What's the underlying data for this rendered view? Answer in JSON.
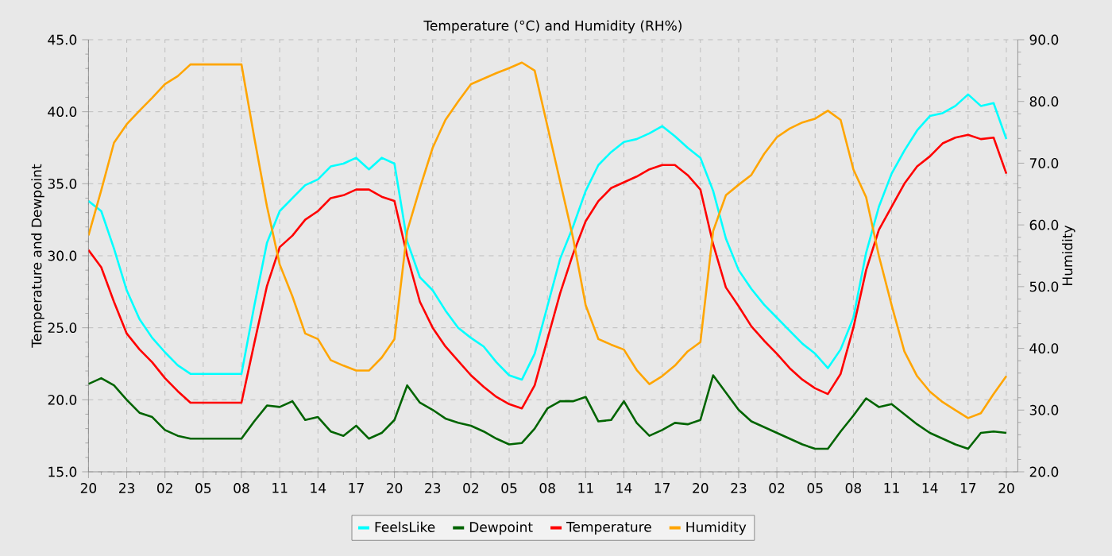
{
  "chart_data": {
    "type": "line",
    "title": "Temperature (°C) and Humidity (RH%)",
    "ylabel": "Temperature and Dewpoint",
    "y2label": "Humidity",
    "categories": [
      "20",
      null,
      null,
      "23",
      null,
      null,
      "02",
      null,
      null,
      "05",
      null,
      null,
      "08",
      null,
      null,
      "11",
      null,
      null,
      "14",
      null,
      null,
      "17",
      null,
      null,
      "20",
      null,
      null,
      "23",
      null,
      null,
      "02",
      null,
      null,
      "05",
      null,
      null,
      "08",
      null,
      null,
      "11",
      null,
      null,
      "14",
      null,
      null,
      "17",
      null,
      null,
      "20",
      null,
      null,
      "23",
      null,
      null,
      "02",
      null,
      null,
      "05",
      null,
      null,
      "08",
      null,
      null,
      "11",
      null,
      null,
      "14",
      null,
      null,
      "17",
      null,
      null,
      "20"
    ],
    "series": [
      {
        "name": "FeelsLike",
        "color": "#00ffff",
        "values": [
          33.8,
          33.1,
          30.5,
          27.6,
          25.6,
          24.3,
          23.3,
          22.4,
          21.8,
          21.8,
          21.8,
          21.8,
          21.8,
          26.5,
          30.9,
          33.1,
          34,
          34.9,
          35.3,
          36.2,
          36.4,
          36.8,
          36,
          36.8,
          36.4,
          31,
          28.5,
          27.6,
          26.2,
          25,
          24.3,
          23.7,
          22.6,
          21.7,
          21.4,
          23.2,
          26.5,
          29.8,
          32,
          34.5,
          36.3,
          37.2,
          37.9,
          38.1,
          38.5,
          39,
          38.3,
          37.5,
          36.8,
          34.5,
          31.2,
          29,
          27.7,
          26.6,
          25.7,
          24.8,
          23.9,
          23.2,
          22.2,
          23.5,
          25.7,
          30.2,
          33.4,
          35.7,
          37.3,
          38.7,
          39.7,
          39.9,
          40.4,
          41.2,
          40.4,
          40.6,
          38.1
        ]
      },
      {
        "name": "Dewpoint",
        "color": "#006400",
        "values": [
          21.1,
          21.5,
          21,
          20,
          19.1,
          18.8,
          17.9,
          17.5,
          17.3,
          17.3,
          17.3,
          17.3,
          17.3,
          18.5,
          19.6,
          19.5,
          19.9,
          18.6,
          18.8,
          17.8,
          17.5,
          18.2,
          17.3,
          17.7,
          18.6,
          21,
          19.8,
          19.3,
          18.7,
          18.4,
          18.2,
          17.8,
          17.3,
          16.9,
          17,
          18,
          19.4,
          19.9,
          19.9,
          20.2,
          18.5,
          18.6,
          19.9,
          18.4,
          17.5,
          17.9,
          18.4,
          18.3,
          18.6,
          21.7,
          20.5,
          19.3,
          18.5,
          18.1,
          17.7,
          17.3,
          16.9,
          16.6,
          16.6,
          17.8,
          18.9,
          20.1,
          19.5,
          19.7,
          19,
          18.3,
          17.7,
          17.3,
          16.9,
          16.6,
          17.7,
          17.8,
          17.7
        ]
      },
      {
        "name": "Temperature",
        "color": "#ff0000",
        "values": [
          30.4,
          29.2,
          26.8,
          24.6,
          23.5,
          22.6,
          21.5,
          20.6,
          19.8,
          19.8,
          19.8,
          19.8,
          19.8,
          23.9,
          27.9,
          30.6,
          31.4,
          32.5,
          33.1,
          34,
          34.2,
          34.6,
          34.6,
          34.1,
          33.8,
          30,
          26.8,
          25,
          23.7,
          22.7,
          21.7,
          20.9,
          20.2,
          19.7,
          19.4,
          21,
          24.2,
          27.4,
          30.1,
          32.4,
          33.8,
          34.7,
          35.1,
          35.5,
          36,
          36.3,
          36.3,
          35.6,
          34.6,
          30.8,
          27.8,
          26.5,
          25.1,
          24.1,
          23.2,
          22.2,
          21.4,
          20.8,
          20.4,
          21.8,
          25,
          29,
          31.8,
          33.4,
          35,
          36.2,
          36.9,
          37.8,
          38.2,
          38.4,
          38.1,
          38.2,
          35.7
        ]
      },
      {
        "name": "Humidity",
        "color": "#ffa500",
        "axis": "y2",
        "values": [
          58.3,
          65.6,
          73.3,
          76.3,
          78.5,
          80.6,
          82.8,
          84.1,
          86,
          86,
          86,
          86,
          86,
          74.2,
          63,
          53.6,
          48.4,
          42.4,
          41.5,
          38.1,
          37.2,
          36.4,
          36.4,
          38.5,
          41.5,
          59,
          66,
          72.5,
          77,
          80,
          82.8,
          83.7,
          84.6,
          85.4,
          86.3,
          85,
          76,
          67,
          58,
          47,
          41.5,
          40.6,
          39.8,
          36.5,
          34.2,
          35.5,
          37.2,
          39.5,
          41,
          59,
          64.8,
          66.5,
          68.1,
          71.5,
          74.2,
          75.6,
          76.6,
          77.2,
          78.5,
          77,
          69,
          64.5,
          55,
          47,
          39.5,
          35.5,
          33,
          31.3,
          30,
          28.7,
          29.5,
          32.6,
          35.5
        ]
      }
    ],
    "ylim": [
      15,
      45
    ],
    "yticks": [
      {
        "value": 15,
        "label": "15.0"
      },
      {
        "value": 20,
        "label": "20.0"
      },
      {
        "value": 25,
        "label": "25.0"
      },
      {
        "value": 30,
        "label": "30.0"
      },
      {
        "value": 35,
        "label": "35.0"
      },
      {
        "value": 40,
        "label": "40.0"
      },
      {
        "value": 45,
        "label": "45.0"
      }
    ],
    "y2lim": [
      20,
      90
    ],
    "y2ticks": [
      {
        "value": 20,
        "label": "20.0"
      },
      {
        "value": 30,
        "label": "30.0"
      },
      {
        "value": 40,
        "label": "40.0"
      },
      {
        "value": 50,
        "label": "50.0"
      },
      {
        "value": 60,
        "label": "60.0"
      },
      {
        "value": 70,
        "label": "70.0"
      },
      {
        "value": 80,
        "label": "80.0"
      },
      {
        "value": 90,
        "label": "90.0"
      }
    ],
    "grid": true,
    "legend": "bottom",
    "line_style": "solid"
  }
}
